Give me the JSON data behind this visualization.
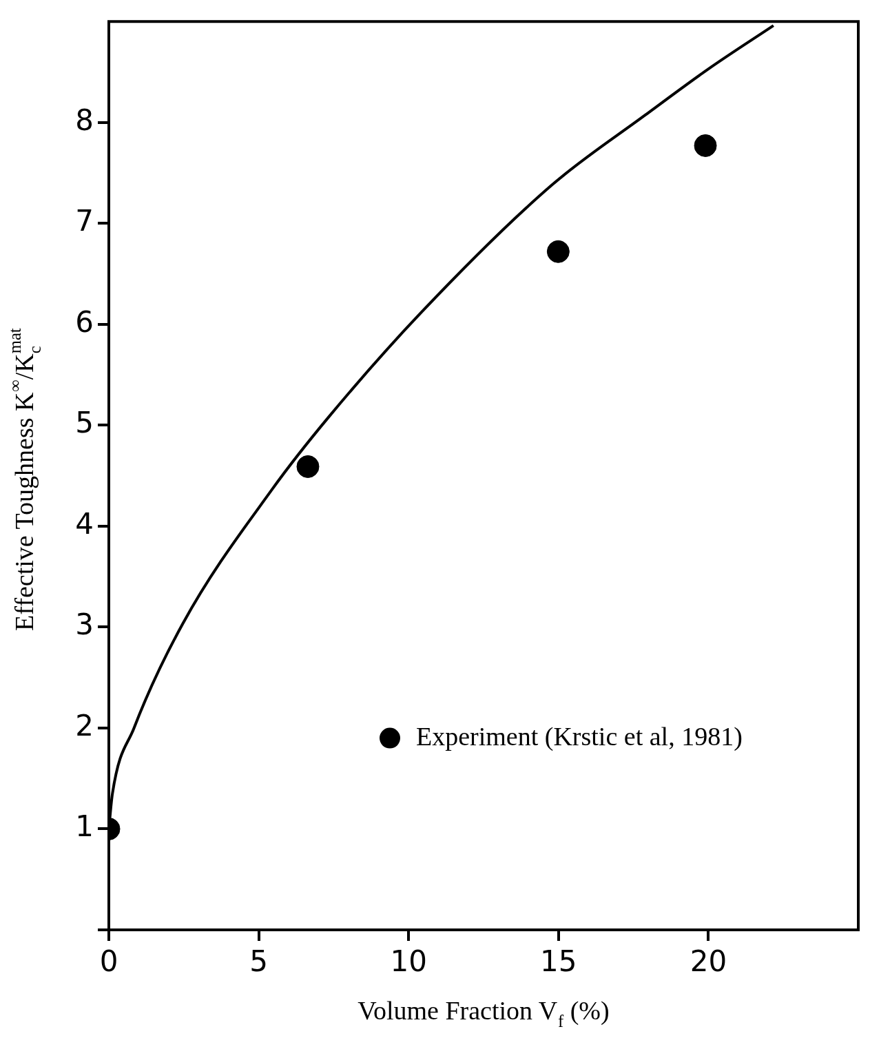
{
  "chart_data": {
    "type": "scatter",
    "xlabel": "Volume Fraction V$_{f}$ (%)",
    "ylabel": "Effective Toughness K$^{∞}$/K$_{c}$$^{mat}$",
    "xlim": [
      0,
      25
    ],
    "ylim": [
      0,
      9
    ],
    "xticks": [
      0,
      5,
      10,
      15,
      20
    ],
    "yticks": [
      {
        "value": 0,
        "label": null
      },
      1,
      2,
      3,
      4,
      5,
      6,
      7,
      8
    ],
    "legend": "bottom right",
    "marker": "circle",
    "grid": false,
    "series": [
      {
        "name": "Experiment (Krstic et al, 1981)",
        "color": "#000000",
        "x": [
          0,
          6.64,
          14.99,
          19.9
        ],
        "values": [
          1.0,
          4.59,
          6.72,
          7.77
        ]
      },
      {
        "type": "line",
        "color": "#000000",
        "marker": "none",
        "line_style": "solid",
        "x": [
          0,
          0.12,
          0.84,
          2.46,
          5.46,
          7.33,
          10.43,
          14.78,
          17.88,
          20.0,
          22.17
        ],
        "values": [
          1.0,
          1.35,
          2.0,
          3.03,
          4.37,
          5.08,
          6.12,
          7.38,
          8.07,
          8.53,
          8.96
        ]
      }
    ]
  }
}
